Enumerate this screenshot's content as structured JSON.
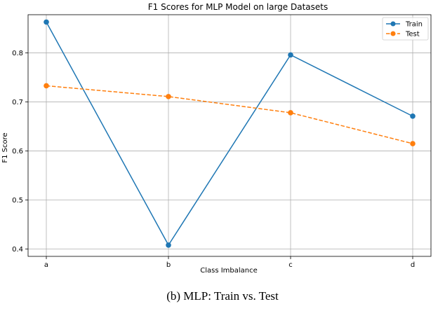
{
  "chart_data": {
    "type": "line",
    "title": "F1 Scores for MLP Model on large Datasets",
    "xlabel": "Class Imbalance",
    "ylabel": "F1 Score",
    "categories": [
      "a",
      "b",
      "c",
      "d"
    ],
    "ylim": [
      0.385,
      0.878
    ],
    "yticks": [
      0.4,
      0.5,
      0.6,
      0.7,
      0.8
    ],
    "ytick_labels": [
      "0.4",
      "0.5",
      "0.6",
      "0.7",
      "0.8"
    ],
    "grid": true,
    "legend_position": "top-right",
    "series": [
      {
        "name": "Train",
        "values": [
          0.863,
          0.408,
          0.796,
          0.671
        ],
        "color": "#1f77b4",
        "linestyle": "solid",
        "marker": "circle"
      },
      {
        "name": "Test",
        "values": [
          0.733,
          0.711,
          0.678,
          0.615
        ],
        "color": "#ff7f0e",
        "linestyle": "dashed",
        "marker": "circle"
      }
    ]
  },
  "caption": "(b) MLP: Train vs. Test"
}
